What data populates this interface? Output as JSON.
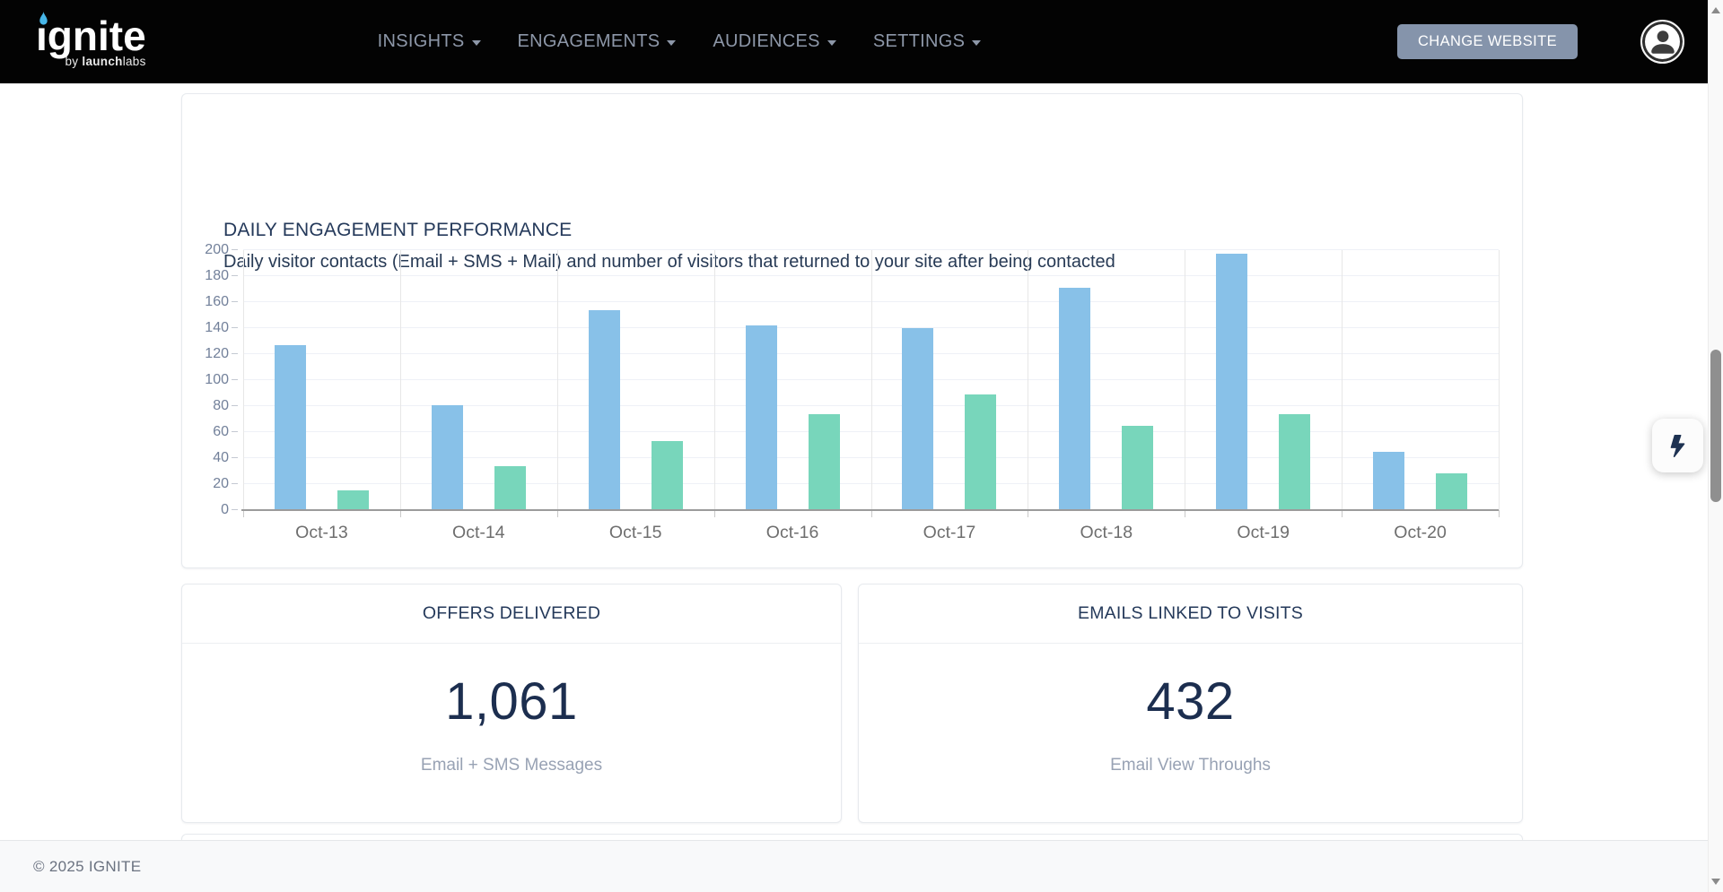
{
  "navbar": {
    "brand": {
      "name": "ıgnite",
      "tagline_by": "by ",
      "tagline_bold": "launch",
      "tagline_rest": "labs",
      "flame_color": "#47b6e8"
    },
    "items": [
      {
        "label": "INSIGHTS"
      },
      {
        "label": "ENGAGEMENTS"
      },
      {
        "label": "AUDIENCES"
      },
      {
        "label": "SETTINGS"
      }
    ],
    "change_website_label": "CHANGE WEBSITE"
  },
  "chart_card": {
    "title": "DAILY ENGAGEMENT PERFORMANCE",
    "subtitle": "Daily visitor contacts (Email + SMS + Mail) and number of visitors that returned to your site after being contacted"
  },
  "chart_data": {
    "type": "bar",
    "title": "DAILY ENGAGEMENT PERFORMANCE",
    "subtitle": "Daily visitor contacts (Email + SMS + Mail) and number of visitors that returned to your site after being contacted",
    "xlabel": "",
    "ylabel": "",
    "categories": [
      "Oct-13",
      "Oct-14",
      "Oct-15",
      "Oct-16",
      "Oct-17",
      "Oct-18",
      "Oct-19",
      "Oct-20"
    ],
    "series": [
      {
        "key": "contacts",
        "name": "Daily visitor contacts (Email + SMS + Mail)",
        "color": "#88c1e8",
        "values": [
          127,
          81,
          154,
          142,
          140,
          171,
          197,
          45
        ]
      },
      {
        "key": "returned-visitors",
        "name": "Visitors that returned after being contacted",
        "color": "#78d6bb",
        "values": [
          15,
          34,
          53,
          74,
          89,
          65,
          74,
          28
        ]
      }
    ],
    "ylim": [
      0,
      200
    ],
    "yticks": [
      0,
      20,
      40,
      60,
      80,
      100,
      120,
      140,
      160,
      180,
      200
    ],
    "grid": true,
    "legend": "none"
  },
  "stat_cards": [
    {
      "title": "OFFERS DELIVERED",
      "value": "1,061",
      "label": "Email + SMS Messages"
    },
    {
      "title": "EMAILS LINKED TO VISITS",
      "value": "432",
      "label": "Email View Throughs"
    }
  ],
  "footer": {
    "copyright": "© 2025 IGNITE"
  },
  "colors": {
    "navbar_bg": "#030303",
    "nav_text": "#8d97a8",
    "button_bg": "#8594ab",
    "navy_text": "#24395a",
    "bar_blue": "#88c1e8",
    "bar_green": "#78d6bb",
    "muted_label": "#98a2b4"
  }
}
